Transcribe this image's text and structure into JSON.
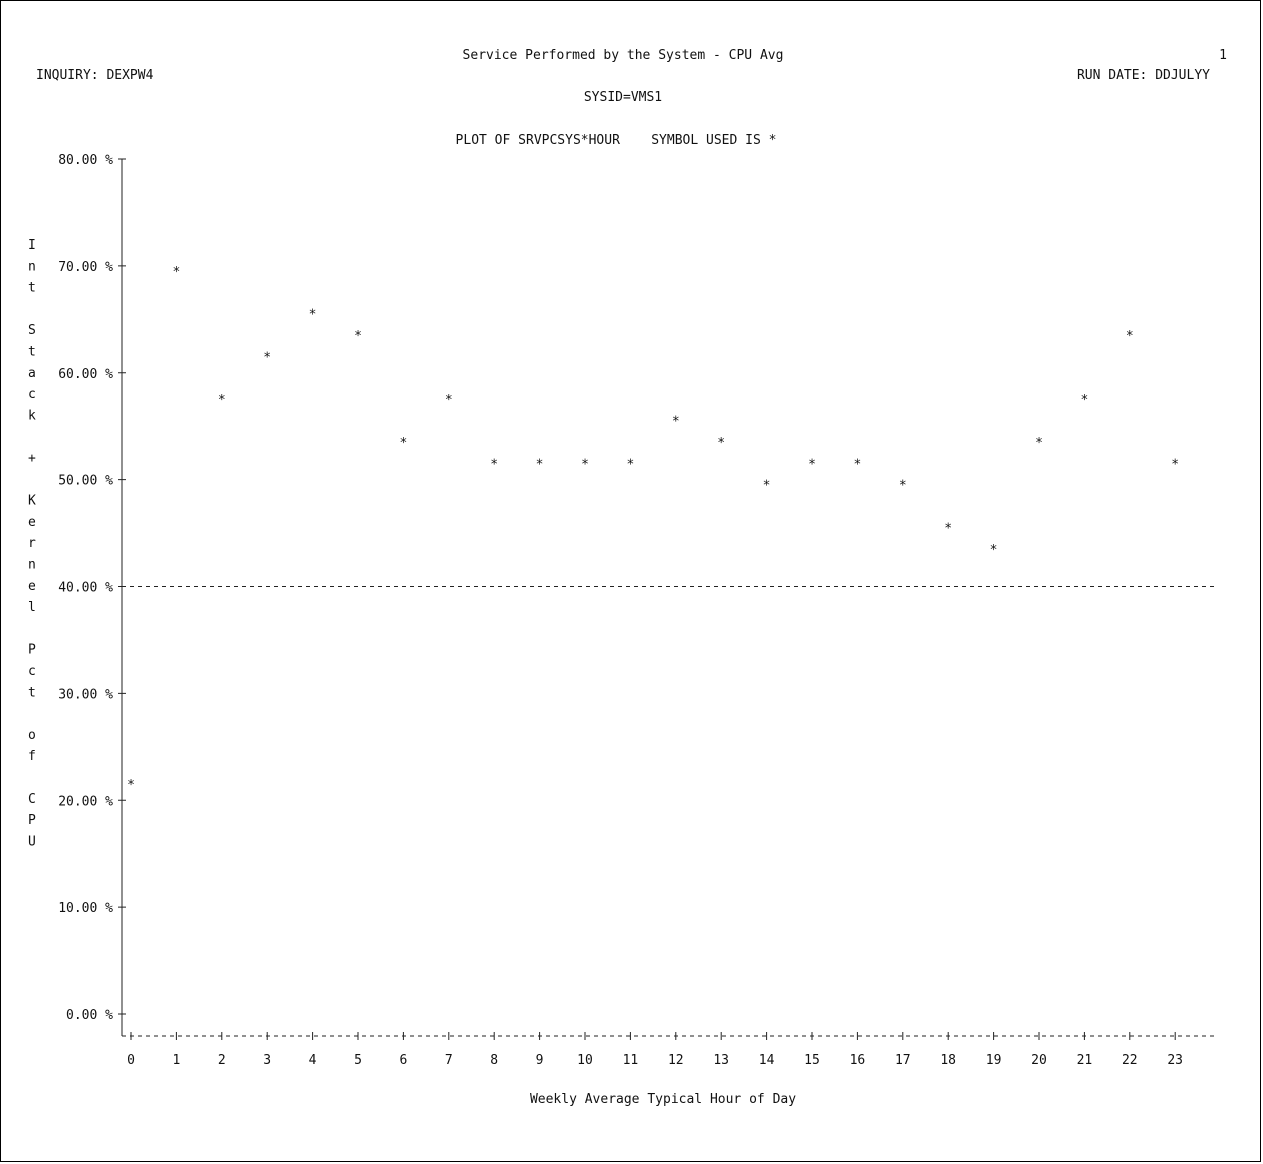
{
  "header": {
    "title": "Service Performed by the System - CPU Avg",
    "page_number": "1",
    "inquiry": "INQUIRY:  DEXPW4",
    "run_date": "RUN DATE:  DDJULYY",
    "sysid": "SYSID=VMS1",
    "plot_spec": "PLOT OF SRVPCSYS*HOUR    SYMBOL USED IS *"
  },
  "chart_data": {
    "type": "scatter",
    "symbol": "*",
    "xlabel": "Weekly Average Typical Hour of Day",
    "ylabel": "Int Stack + Kernel Pct of CPU",
    "ylabel_chars": [
      "I",
      "n",
      "t",
      "",
      "S",
      "t",
      "a",
      "c",
      "k",
      "",
      "+",
      "",
      "K",
      "e",
      "r",
      "n",
      "e",
      "l",
      "",
      "P",
      "c",
      "t",
      "",
      "o",
      "f",
      "",
      "C",
      "P",
      "U"
    ],
    "ylim": [
      0,
      80
    ],
    "xlim": [
      0,
      23
    ],
    "y_ticks": [
      {
        "value": 80,
        "label": "80.00 %"
      },
      {
        "value": 70,
        "label": "70.00 %"
      },
      {
        "value": 60,
        "label": "60.00 %"
      },
      {
        "value": 50,
        "label": "50.00 %"
      },
      {
        "value": 40,
        "label": "40.00 %"
      },
      {
        "value": 30,
        "label": "30.00 %"
      },
      {
        "value": 20,
        "label": "20.00 %"
      },
      {
        "value": 10,
        "label": "10.00 %"
      },
      {
        "value": 0,
        "label": "0.00 %"
      }
    ],
    "x_ticks": [
      "0",
      "1",
      "2",
      "3",
      "4",
      "5",
      "6",
      "7",
      "8",
      "9",
      "10",
      "11",
      "12",
      "13",
      "14",
      "15",
      "16",
      "17",
      "18",
      "19",
      "20",
      "21",
      "22",
      "23"
    ],
    "reference_line": 40,
    "x": [
      0,
      1,
      2,
      3,
      4,
      5,
      6,
      7,
      8,
      9,
      10,
      11,
      12,
      13,
      14,
      15,
      16,
      17,
      18,
      19,
      20,
      21,
      22,
      23
    ],
    "y": [
      22,
      70,
      58,
      62,
      66,
      64,
      54,
      58,
      52,
      52,
      52,
      52,
      56,
      54,
      50,
      52,
      52,
      50,
      46,
      44,
      54,
      58,
      64,
      52
    ]
  }
}
